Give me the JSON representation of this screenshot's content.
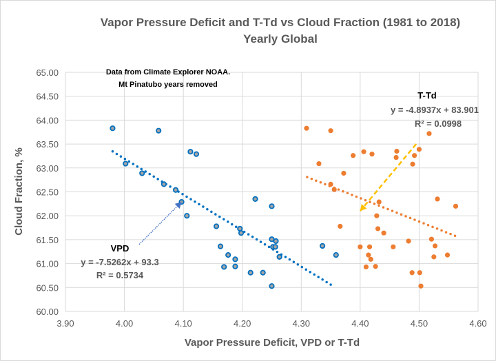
{
  "chart_data": {
    "type": "scatter",
    "title": "Vapor Pressure Deficit and T-Td vs Cloud Fraction (1981 to 2018)",
    "subtitle": "Yearly Global",
    "xlabel": "Vapor Pressure Deficit, VPD or T-Td",
    "ylabel": "Cloud Fraction, %",
    "xlim": [
      3.9,
      4.6
    ],
    "ylim": [
      60.0,
      65.0
    ],
    "xticks": [
      "3.90",
      "4.00",
      "4.10",
      "4.20",
      "4.30",
      "4.40",
      "4.50",
      "4.60"
    ],
    "yticks": [
      "60.00",
      "60.50",
      "61.00",
      "61.50",
      "62.00",
      "62.50",
      "63.00",
      "63.50",
      "64.00",
      "64.50",
      "65.00"
    ],
    "grid": true,
    "annotation": [
      "Data from Climate Explorer NOAA.",
      "Mt Pinatubo years removed"
    ],
    "series": [
      {
        "name": "VPD",
        "color": "#0070c0",
        "marker": "ring",
        "trendline": {
          "slope": -7.5262,
          "intercept": 93.3,
          "x_range": [
            3.98,
            4.355
          ],
          "equation": "y = -7.5262x + 93.3",
          "r2": "R² = 0.5734"
        },
        "points": [
          [
            3.98,
            63.83
          ],
          [
            4.058,
            63.78
          ],
          [
            4.112,
            63.34
          ],
          [
            4.122,
            63.29
          ],
          [
            4.002,
            63.09
          ],
          [
            4.03,
            62.89
          ],
          [
            4.067,
            62.66
          ],
          [
            4.087,
            62.54
          ],
          [
            4.097,
            62.29
          ],
          [
            4.106,
            62.0
          ],
          [
            4.156,
            61.78
          ],
          [
            4.222,
            62.35
          ],
          [
            4.25,
            62.2
          ],
          [
            4.196,
            61.73
          ],
          [
            4.198,
            61.64
          ],
          [
            4.163,
            61.36
          ],
          [
            4.25,
            61.51
          ],
          [
            4.257,
            61.47
          ],
          [
            4.252,
            61.35
          ],
          [
            4.256,
            61.35
          ],
          [
            4.263,
            61.14
          ],
          [
            4.176,
            61.18
          ],
          [
            4.188,
            61.09
          ],
          [
            4.169,
            60.93
          ],
          [
            4.188,
            60.94
          ],
          [
            4.214,
            60.81
          ],
          [
            4.235,
            60.81
          ],
          [
            4.25,
            60.53
          ],
          [
            4.336,
            61.37
          ],
          [
            4.359,
            61.18
          ]
        ]
      },
      {
        "name": "T-Td",
        "color": "#ed7d31",
        "marker": "dot",
        "trendline": {
          "slope": -4.8937,
          "intercept": 83.901,
          "x_range": [
            4.31,
            4.562
          ],
          "equation": "y = -4.8937x + 83.901",
          "r2": "R² = 0.0998"
        },
        "points": [
          [
            4.309,
            63.83
          ],
          [
            4.35,
            63.78
          ],
          [
            4.406,
            63.34
          ],
          [
            4.42,
            63.29
          ],
          [
            4.388,
            63.26
          ],
          [
            4.33,
            63.09
          ],
          [
            4.372,
            62.89
          ],
          [
            4.35,
            62.66
          ],
          [
            4.356,
            62.55
          ],
          [
            4.462,
            63.35
          ],
          [
            4.461,
            63.22
          ],
          [
            4.492,
            63.26
          ],
          [
            4.489,
            63.08
          ],
          [
            4.5,
            63.39
          ],
          [
            4.517,
            63.72
          ],
          [
            4.432,
            62.29
          ],
          [
            4.428,
            62.0
          ],
          [
            4.531,
            62.35
          ],
          [
            4.562,
            62.2
          ],
          [
            4.366,
            61.78
          ],
          [
            4.43,
            61.73
          ],
          [
            4.44,
            61.64
          ],
          [
            4.482,
            61.47
          ],
          [
            4.521,
            61.51
          ],
          [
            4.527,
            61.37
          ],
          [
            4.4,
            61.35
          ],
          [
            4.416,
            61.35
          ],
          [
            4.456,
            61.35
          ],
          [
            4.414,
            61.18
          ],
          [
            4.418,
            61.09
          ],
          [
            4.548,
            61.18
          ],
          [
            4.525,
            61.14
          ],
          [
            4.41,
            60.93
          ],
          [
            4.426,
            60.94
          ],
          [
            4.488,
            60.81
          ],
          [
            4.501,
            60.81
          ],
          [
            4.503,
            60.53
          ]
        ]
      }
    ],
    "labels": {
      "vpd": "VPD",
      "ttd": "T-Td"
    },
    "arrows": [
      {
        "series": "VPD",
        "style": "dotted",
        "color": "#4472c4",
        "from": [
          4.025,
          61.4
        ],
        "to": [
          4.097,
          62.29
        ]
      },
      {
        "series": "T-Td",
        "style": "dashed",
        "color": "#ffc000",
        "from": [
          4.495,
          63.5
        ],
        "to": [
          4.4,
          62.1
        ]
      }
    ]
  }
}
